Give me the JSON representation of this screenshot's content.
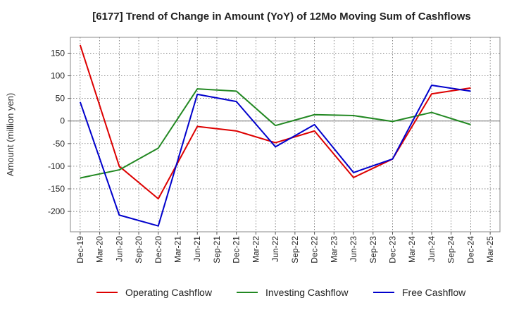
{
  "chart_data": {
    "type": "line",
    "title": "[6177]  Trend of Change in Amount (YoY) of 12Mo Moving Sum of Cashflows",
    "xlabel": "",
    "ylabel": "Amount (million yen)",
    "ylim": [
      -245,
      185
    ],
    "yticks": [
      150,
      100,
      50,
      0,
      -50,
      -100,
      -150,
      -200
    ],
    "grid": true,
    "legend_position": "bottom",
    "categories": [
      "Dec-19",
      "Mar-20",
      "Jun-20",
      "Sep-20",
      "Dec-20",
      "Mar-21",
      "Jun-21",
      "Sep-21",
      "Dec-21",
      "Mar-22",
      "Jun-22",
      "Sep-22",
      "Dec-22",
      "Mar-23",
      "Jun-23",
      "Sep-23",
      "Dec-23",
      "Mar-24",
      "Jun-24",
      "Sep-24",
      "Dec-24",
      "Mar-25"
    ],
    "series": [
      {
        "name": "Operating Cashflow",
        "color": "#dd0000",
        "values": [
          168,
          null,
          -100,
          null,
          -172,
          null,
          -12,
          null,
          -22,
          null,
          -48,
          null,
          -22,
          null,
          -125,
          null,
          -84,
          null,
          60,
          null,
          73,
          null
        ]
      },
      {
        "name": "Investing Cashflow",
        "color": "#228822",
        "values": [
          -126,
          null,
          -108,
          null,
          -60,
          null,
          71,
          null,
          66,
          null,
          -10,
          null,
          14,
          null,
          12,
          null,
          -1,
          null,
          19,
          null,
          -8,
          null
        ]
      },
      {
        "name": "Free Cashflow",
        "color": "#0000cc",
        "values": [
          42,
          null,
          -208,
          null,
          -232,
          null,
          59,
          null,
          43,
          null,
          -57,
          null,
          -8,
          null,
          -114,
          null,
          -84,
          null,
          79,
          null,
          66,
          null
        ]
      }
    ]
  }
}
